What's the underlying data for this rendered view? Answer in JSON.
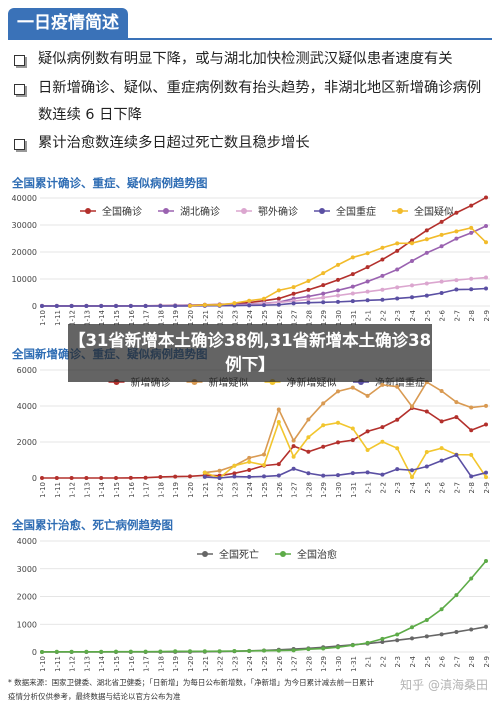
{
  "header": {
    "title": "一日疫情简述"
  },
  "bullets": [
    "疑似病例数有明显下降，或与湖北加快检测武汉疑似患者速度有关",
    "日新增确诊、疑似、重症病例数有抬头趋势，非湖北地区新增确诊病例数连续 6 日下降",
    "累计治愈数连续多日超过死亡数且稳步增长"
  ],
  "banner": "【31省新增本土确诊38例,31省新增本土确诊38例下】",
  "footer": [
    "* 数据来源：国家卫健委、湖北省卫健委；「日新增」为每日公布新增数，「净新增」为今日累计减去前一日累计",
    "疫情分析仅供参考，最终数据与结论以官方公布为准"
  ],
  "watermark": "知乎 @滇海桑田",
  "chart_data": [
    {
      "type": "line",
      "title": "全国累计确诊、重症、疑似病例趋势图",
      "categories": [
        "1-10",
        "1-11",
        "1-12",
        "1-13",
        "1-14",
        "1-15",
        "1-16",
        "1-17",
        "1-18",
        "1-19",
        "1-20",
        "1-21",
        "1-22",
        "1-23",
        "1-24",
        "1-25",
        "1-26",
        "1-27",
        "1-28",
        "1-29",
        "1-30",
        "1-31",
        "2-1",
        "2-2",
        "2-3",
        "2-4",
        "2-5",
        "2-6",
        "2-7",
        "2-8",
        "2-9"
      ],
      "ylim": [
        0,
        40000
      ],
      "yticks": [
        0,
        10000,
        20000,
        30000,
        40000
      ],
      "grid": true,
      "series": [
        {
          "name": "全国确诊",
          "color": "#b3302c",
          "values": [
            41,
            41,
            41,
            41,
            41,
            41,
            45,
            62,
            121,
            198,
            291,
            440,
            571,
            830,
            1287,
            1975,
            2744,
            4515,
            5974,
            7711,
            9692,
            11791,
            14380,
            17205,
            20438,
            24324,
            28018,
            31161,
            34546,
            37198,
            40171
          ]
        },
        {
          "name": "湖北确诊",
          "color": "#9a62b0",
          "values": [
            41,
            41,
            41,
            41,
            41,
            41,
            45,
            62,
            121,
            198,
            270,
            375,
            444,
            549,
            729,
            1052,
            1423,
            2714,
            3554,
            4586,
            5806,
            7153,
            9074,
            11177,
            13522,
            16678,
            19665,
            22112,
            24953,
            27100,
            29631
          ]
        },
        {
          "name": "鄂外确诊",
          "color": "#dba6cf",
          "values": [
            0,
            0,
            0,
            0,
            0,
            0,
            0,
            0,
            0,
            0,
            21,
            65,
            127,
            281,
            558,
            923,
            1321,
            1801,
            2420,
            3125,
            3886,
            4638,
            5306,
            6028,
            6916,
            7646,
            8353,
            9049,
            9593,
            10098,
            10540
          ]
        },
        {
          "name": "全国重症",
          "color": "#5a4fa3",
          "values": [
            0,
            0,
            0,
            0,
            0,
            0,
            0,
            0,
            0,
            0,
            35,
            95,
            95,
            177,
            237,
            324,
            461,
            976,
            1239,
            1370,
            1527,
            1795,
            2110,
            2296,
            2788,
            3219,
            3859,
            4821,
            6101,
            6188,
            6484
          ]
        },
        {
          "name": "全国疑似",
          "color": "#f2bb2a",
          "values": [
            null,
            null,
            null,
            null,
            null,
            null,
            null,
            null,
            null,
            null,
            54,
            393,
            393,
            1072,
            1965,
            2684,
            5794,
            6973,
            9239,
            12167,
            15238,
            17988,
            19544,
            21558,
            23214,
            23260,
            24702,
            26359,
            27657,
            28942,
            23589
          ]
        }
      ]
    },
    {
      "type": "line",
      "title": "全国新增确诊、重症、疑似病例趋势图",
      "categories": [
        "1-10",
        "1-11",
        "1-12",
        "1-13",
        "1-14",
        "1-15",
        "1-16",
        "1-17",
        "1-18",
        "1-19",
        "1-20",
        "1-21",
        "1-22",
        "1-23",
        "1-24",
        "1-25",
        "1-26",
        "1-27",
        "1-28",
        "1-29",
        "1-30",
        "1-31",
        "2-1",
        "2-2",
        "2-3",
        "2-4",
        "2-5",
        "2-6",
        "2-7",
        "2-8",
        "2-9"
      ],
      "ylim": [
        0,
        6000
      ],
      "yticks": [
        0,
        2000,
        4000,
        6000
      ],
      "grid": true,
      "series": [
        {
          "name": "新增确诊",
          "color": "#b3302c",
          "values": [
            0,
            0,
            0,
            0,
            0,
            0,
            4,
            17,
            59,
            77,
            93,
            149,
            131,
            259,
            444,
            688,
            769,
            1771,
            1459,
            1737,
            1982,
            2102,
            2590,
            2829,
            3235,
            3887,
            3694,
            3143,
            3385,
            2652,
            2973
          ]
        },
        {
          "name": "新增疑似",
          "color": "#d99a52",
          "values": [
            null,
            null,
            null,
            null,
            null,
            null,
            null,
            null,
            null,
            null,
            null,
            300,
            400,
            680,
            1118,
            1309,
            3806,
            2077,
            3248,
            4148,
            4812,
            5019,
            4562,
            5173,
            5072,
            3971,
            5328,
            4833,
            4214,
            3916,
            4008
          ]
        },
        {
          "name": "净新增疑似",
          "color": "#f2c62e",
          "values": [
            null,
            null,
            null,
            null,
            null,
            null,
            null,
            null,
            null,
            null,
            null,
            300,
            0,
            679,
            893,
            719,
            3110,
            1179,
            2266,
            2928,
            3071,
            2750,
            1556,
            2014,
            1656,
            46,
            1442,
            1657,
            1298,
            1285,
            50
          ]
        },
        {
          "name": "净新增重症",
          "color": "#5a4fa3",
          "values": [
            null,
            null,
            null,
            null,
            null,
            null,
            null,
            null,
            null,
            null,
            null,
            60,
            0,
            82,
            60,
            87,
            137,
            515,
            263,
            131,
            157,
            268,
            315,
            186,
            492,
            431,
            640,
            962,
            1280,
            87,
            296
          ]
        }
      ]
    },
    {
      "type": "line",
      "title": "全国累计治愈、死亡病例趋势图",
      "categories": [
        "1-10",
        "1-11",
        "1-12",
        "1-13",
        "1-14",
        "1-15",
        "1-16",
        "1-17",
        "1-18",
        "1-19",
        "1-20",
        "1-21",
        "1-22",
        "1-23",
        "1-24",
        "1-25",
        "1-26",
        "1-27",
        "1-28",
        "1-29",
        "1-30",
        "1-31",
        "2-1",
        "2-2",
        "2-3",
        "2-4",
        "2-5",
        "2-6",
        "2-7",
        "2-8",
        "2-9"
      ],
      "ylim": [
        0,
        4000
      ],
      "yticks": [
        0,
        1000,
        2000,
        3000,
        4000
      ],
      "grid": true,
      "series": [
        {
          "name": "全国死亡",
          "color": "#666666",
          "values": [
            1,
            1,
            1,
            1,
            1,
            2,
            2,
            2,
            3,
            4,
            6,
            9,
            17,
            25,
            41,
            56,
            80,
            106,
            132,
            170,
            213,
            259,
            304,
            361,
            425,
            490,
            563,
            636,
            722,
            811,
            908
          ]
        },
        {
          "name": "全国治愈",
          "color": "#5dab48",
          "values": [
            2,
            7,
            7,
            7,
            7,
            12,
            12,
            12,
            17,
            25,
            25,
            25,
            28,
            34,
            38,
            49,
            51,
            60,
            103,
            124,
            171,
            243,
            328,
            475,
            632,
            892,
            1153,
            1540,
            2050,
            2649,
            3281
          ]
        }
      ]
    }
  ]
}
